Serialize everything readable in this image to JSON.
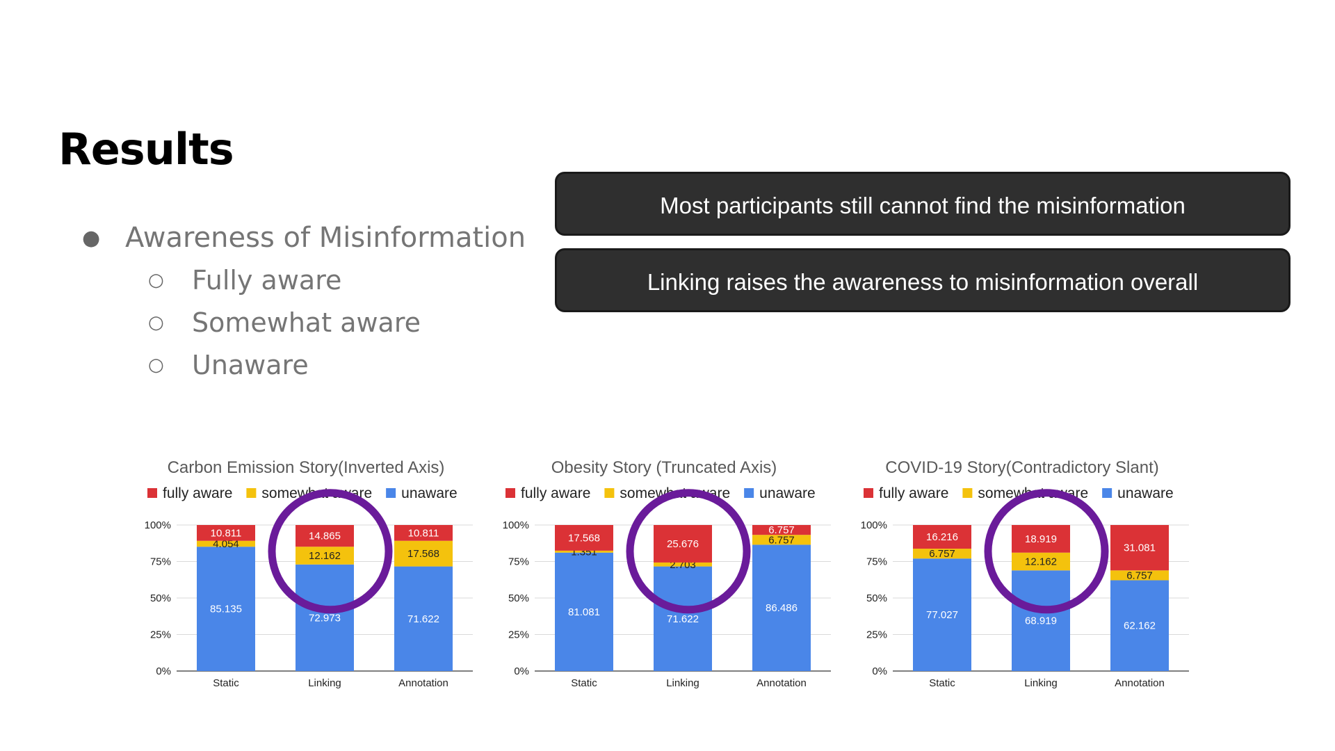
{
  "slide": {
    "title": "Results",
    "bullets": [
      {
        "text": "Awareness of Misinformation",
        "level": 1,
        "marker": "●"
      },
      {
        "text": "Fully aware",
        "level": 2,
        "marker": "○"
      },
      {
        "text": "Somewhat aware",
        "level": 2,
        "marker": "○"
      },
      {
        "text": "Unaware",
        "level": 2,
        "marker": "○"
      }
    ],
    "callouts": [
      "Most participants still cannot find the misinformation",
      "Linking raises the awareness to misinformation overall"
    ]
  },
  "colors": {
    "fully_aware": "#db3236",
    "somewhat_aware": "#f4c20d",
    "unaware": "#4a86e8",
    "highlight_circle": "#6a1b9a"
  },
  "chart_data": [
    {
      "type": "bar",
      "stacked": true,
      "title": "Carbon Emission Story(Inverted Axis)",
      "categories": [
        "Static",
        "Linking",
        "Annotation"
      ],
      "series": [
        {
          "name": "unaware",
          "values": [
            85.135,
            72.973,
            71.622
          ]
        },
        {
          "name": "somewhat aware",
          "values": [
            4.054,
            12.162,
            17.568
          ]
        },
        {
          "name": "fully aware",
          "values": [
            10.811,
            14.865,
            10.811
          ]
        }
      ],
      "yticks": [
        "0%",
        "25%",
        "50%",
        "75%",
        "100%"
      ],
      "ylim": [
        0,
        100
      ],
      "legend": "top",
      "grid": true,
      "highlight_category": "Linking"
    },
    {
      "type": "bar",
      "stacked": true,
      "title": "Obesity Story (Truncated Axis)",
      "categories": [
        "Static",
        "Linking",
        "Annotation"
      ],
      "series": [
        {
          "name": "unaware",
          "values": [
            81.081,
            71.622,
            86.486
          ]
        },
        {
          "name": "somewhat aware",
          "values": [
            1.351,
            2.703,
            6.757
          ]
        },
        {
          "name": "fully aware",
          "values": [
            17.568,
            25.676,
            6.757
          ]
        }
      ],
      "yticks": [
        "0%",
        "25%",
        "50%",
        "75%",
        "100%"
      ],
      "ylim": [
        0,
        100
      ],
      "legend": "top",
      "grid": true,
      "highlight_category": "Linking"
    },
    {
      "type": "bar",
      "stacked": true,
      "title": "COVID-19 Story(Contradictory Slant)",
      "categories": [
        "Static",
        "Linking",
        "Annotation"
      ],
      "series": [
        {
          "name": "unaware",
          "values": [
            77.027,
            68.919,
            62.162
          ]
        },
        {
          "name": "somewhat aware",
          "values": [
            6.757,
            12.162,
            6.757
          ]
        },
        {
          "name": "fully aware",
          "values": [
            16.216,
            18.919,
            31.081
          ]
        }
      ],
      "yticks": [
        "0%",
        "25%",
        "50%",
        "75%",
        "100%"
      ],
      "ylim": [
        0,
        100
      ],
      "legend": "top",
      "grid": true,
      "highlight_category": "Linking"
    }
  ]
}
